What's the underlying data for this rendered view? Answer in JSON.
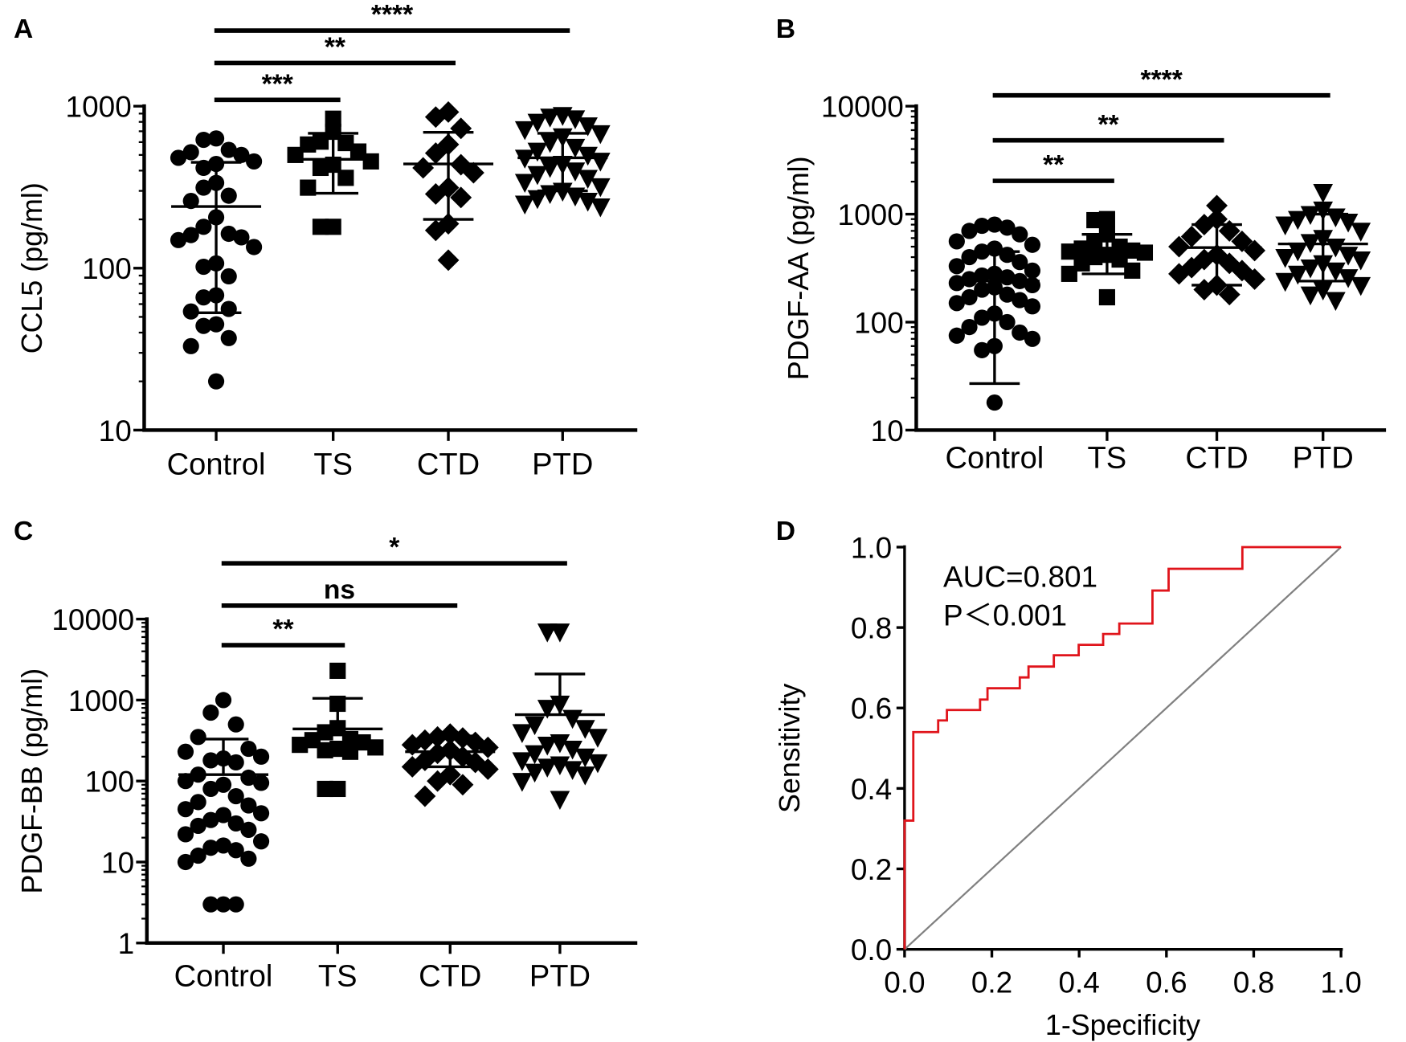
{
  "chart_data": [
    {
      "panel": "A",
      "type": "scatter",
      "scale": "log",
      "ylabel": "CCL5 (pg/ml)",
      "ylim": [
        10,
        1000
      ],
      "yticks": [
        "10",
        "100",
        "1000"
      ],
      "categories": [
        "Control",
        "TS",
        "CTD",
        "PTD"
      ],
      "groups": [
        {
          "name": "Control",
          "marker": "circle",
          "values": [
            632,
            620,
            537,
            520,
            500,
            480,
            456,
            440,
            416,
            336,
            314,
            280,
            260,
            206,
            180,
            163,
            160,
            155,
            149,
            135,
            107,
            102,
            89,
            68,
            66,
            56,
            54,
            45,
            44,
            37,
            33,
            20
          ],
          "mean": 240,
          "sd_upper": 450,
          "sd_lower": 53
        },
        {
          "name": "TS",
          "marker": "square",
          "values": [
            837,
            695,
            604,
            592,
            580,
            525,
            500,
            456,
            435,
            416,
            361,
            314,
            180,
            180
          ],
          "mean": 470,
          "sd_upper": 680,
          "sd_lower": 290
        },
        {
          "name": "CTD",
          "marker": "diamond",
          "values": [
            920,
            857,
            729,
            580,
            513,
            435,
            416,
            388,
            314,
            287,
            273,
            188,
            171,
            112
          ],
          "mean": 440,
          "sd_upper": 690,
          "sd_lower": 200
        },
        {
          "name": "PTD",
          "marker": "triangle-down",
          "values": [
            880,
            860,
            840,
            800,
            760,
            720,
            680,
            650,
            600,
            560,
            530,
            500,
            480,
            460,
            440,
            420,
            400,
            380,
            360,
            340,
            320,
            300,
            290,
            280,
            270,
            260,
            250,
            240
          ],
          "mean": 480,
          "sd_upper": 680,
          "sd_lower": 300
        }
      ],
      "significance": [
        {
          "from": "Control",
          "to": "TS",
          "label": "***"
        },
        {
          "from": "Control",
          "to": "CTD",
          "label": "**"
        },
        {
          "from": "Control",
          "to": "PTD",
          "label": "****"
        }
      ]
    },
    {
      "panel": "B",
      "type": "scatter",
      "scale": "log",
      "ylabel": "PDGF-AA (pg/ml)",
      "ylim": [
        10,
        10000
      ],
      "yticks": [
        "10",
        "100",
        "1000",
        "10000"
      ],
      "categories": [
        "Control",
        "TS",
        "CTD",
        "PTD"
      ],
      "groups": [
        {
          "name": "Control",
          "marker": "circle",
          "values": [
            800,
            780,
            750,
            700,
            650,
            560,
            520,
            480,
            450,
            420,
            400,
            360,
            330,
            300,
            280,
            270,
            260,
            250,
            240,
            230,
            220,
            210,
            200,
            180,
            170,
            160,
            150,
            140,
            120,
            110,
            100,
            90,
            80,
            75,
            70,
            60,
            55,
            18
          ],
          "mean": 240,
          "sd_upper": 450,
          "sd_lower": 27
        },
        {
          "name": "TS",
          "marker": "square",
          "values": [
            900,
            880,
            650,
            550,
            500,
            480,
            460,
            450,
            440,
            420,
            400,
            380,
            350,
            300,
            280,
            170
          ],
          "mean": 480,
          "sd_upper": 650,
          "sd_lower": 280
        },
        {
          "name": "CTD",
          "marker": "diamond",
          "values": [
            1200,
            900,
            800,
            700,
            620,
            560,
            500,
            460,
            420,
            380,
            350,
            320,
            300,
            280,
            250,
            220,
            200,
            180
          ],
          "mean": 490,
          "sd_upper": 800,
          "sd_lower": 220
        },
        {
          "name": "PTD",
          "marker": "triangle-down",
          "values": [
            1600,
            1100,
            1000,
            950,
            900,
            850,
            800,
            700,
            600,
            550,
            500,
            460,
            420,
            400,
            380,
            350,
            320,
            300,
            280,
            260,
            240,
            220,
            200,
            180,
            160
          ],
          "mean": 530,
          "sd_upper": 1000,
          "sd_lower": 240
        }
      ],
      "significance": [
        {
          "from": "Control",
          "to": "TS",
          "label": "**"
        },
        {
          "from": "Control",
          "to": "CTD",
          "label": "**"
        },
        {
          "from": "Control",
          "to": "PTD",
          "label": "****"
        }
      ]
    },
    {
      "panel": "C",
      "type": "scatter",
      "scale": "log",
      "ylabel": "PDGF-BB (pg/ml)",
      "ylim": [
        1,
        10000
      ],
      "yticks": [
        "1",
        "10",
        "100",
        "1000",
        "10000"
      ],
      "categories": [
        "Control",
        "TS",
        "CTD",
        "PTD"
      ],
      "groups": [
        {
          "name": "Control",
          "marker": "circle",
          "values": [
            1000,
            700,
            500,
            350,
            250,
            230,
            200,
            190,
            180,
            170,
            120,
            110,
            100,
            95,
            90,
            80,
            65,
            55,
            50,
            45,
            40,
            38,
            33,
            30,
            28,
            25,
            22,
            18,
            16,
            15,
            14,
            12,
            11,
            10,
            3,
            3,
            3
          ],
          "mean": 120,
          "sd_upper": 330,
          "sd_lower": null
        },
        {
          "name": "TS",
          "marker": "square",
          "values": [
            2300,
            900,
            450,
            400,
            330,
            320,
            300,
            280,
            260,
            250,
            240,
            230,
            80,
            80
          ],
          "mean": 440,
          "sd_upper": 1050,
          "sd_lower": null
        },
        {
          "name": "CTD",
          "marker": "diamond",
          "values": [
            380,
            350,
            340,
            320,
            300,
            280,
            260,
            240,
            220,
            200,
            180,
            170,
            150,
            140,
            120,
            100,
            90,
            65
          ],
          "mean": 230,
          "sd_upper": 360,
          "sd_lower": 150
        },
        {
          "name": "PTD",
          "marker": "triangle-down",
          "values": [
            7000,
            7000,
            900,
            800,
            600,
            500,
            450,
            400,
            350,
            300,
            280,
            250,
            220,
            200,
            180,
            170,
            160,
            150,
            140,
            130,
            120,
            100,
            60
          ],
          "mean": 660,
          "sd_upper": 2100,
          "sd_lower": null
        }
      ],
      "significance": [
        {
          "from": "Control",
          "to": "TS",
          "label": "**"
        },
        {
          "from": "Control",
          "to": "CTD",
          "label": "ns"
        },
        {
          "from": "Control",
          "to": "PTD",
          "label": "*"
        }
      ]
    },
    {
      "panel": "D",
      "type": "line",
      "title": "",
      "xlabel": "1-Specificity",
      "ylabel": "Sensitivity",
      "xlim": [
        0,
        1
      ],
      "ylim": [
        0,
        1
      ],
      "xticks": [
        "0.0",
        "0.2",
        "0.4",
        "0.6",
        "0.8",
        "1.0"
      ],
      "yticks": [
        "0.0",
        "0.2",
        "0.4",
        "0.6",
        "0.8",
        "1.0"
      ],
      "annotations": [
        "AUC=0.801",
        "P＜0.001"
      ],
      "series": [
        {
          "name": "ROC",
          "color": "#e0141b",
          "points": [
            [
              0,
              0
            ],
            [
              0,
              0.32
            ],
            [
              0.02,
              0.32
            ],
            [
              0.02,
              0.54
            ],
            [
              0.077,
              0.54
            ],
            [
              0.077,
              0.569
            ],
            [
              0.097,
              0.569
            ],
            [
              0.097,
              0.595
            ],
            [
              0.173,
              0.595
            ],
            [
              0.173,
              0.621
            ],
            [
              0.19,
              0.621
            ],
            [
              0.19,
              0.649
            ],
            [
              0.264,
              0.649
            ],
            [
              0.264,
              0.676
            ],
            [
              0.284,
              0.676
            ],
            [
              0.284,
              0.703
            ],
            [
              0.342,
              0.703
            ],
            [
              0.342,
              0.731
            ],
            [
              0.399,
              0.731
            ],
            [
              0.399,
              0.757
            ],
            [
              0.455,
              0.757
            ],
            [
              0.455,
              0.784
            ],
            [
              0.492,
              0.784
            ],
            [
              0.492,
              0.81
            ],
            [
              0.568,
              0.81
            ],
            [
              0.568,
              0.892
            ],
            [
              0.605,
              0.892
            ],
            [
              0.605,
              0.946
            ],
            [
              0.774,
              0.946
            ],
            [
              0.774,
              1
            ],
            [
              1,
              1
            ]
          ]
        },
        {
          "name": "Reference",
          "color": "#808080",
          "points": [
            [
              0,
              0
            ],
            [
              1,
              1
            ]
          ]
        }
      ]
    }
  ]
}
